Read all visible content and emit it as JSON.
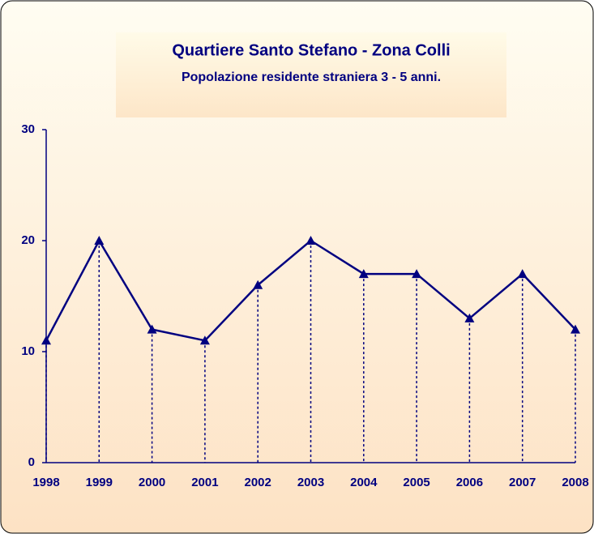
{
  "chart_data": {
    "type": "line",
    "title": "Quartiere Santo Stefano - Zona Colli",
    "subtitle": "Popolazione residente straniera 3 - 5 anni.",
    "categories": [
      "1998",
      "1999",
      "2000",
      "2001",
      "2002",
      "2003",
      "2004",
      "2005",
      "2006",
      "2007",
      "2008"
    ],
    "series": [
      {
        "name": "Popolazione",
        "color": "#000080",
        "values": [
          11,
          20,
          12,
          11,
          16,
          20,
          17,
          17,
          13,
          17,
          12
        ]
      }
    ],
    "ylim": [
      0,
      30
    ],
    "yticks": [
      0,
      10,
      20,
      30
    ],
    "drop_lines": true
  }
}
